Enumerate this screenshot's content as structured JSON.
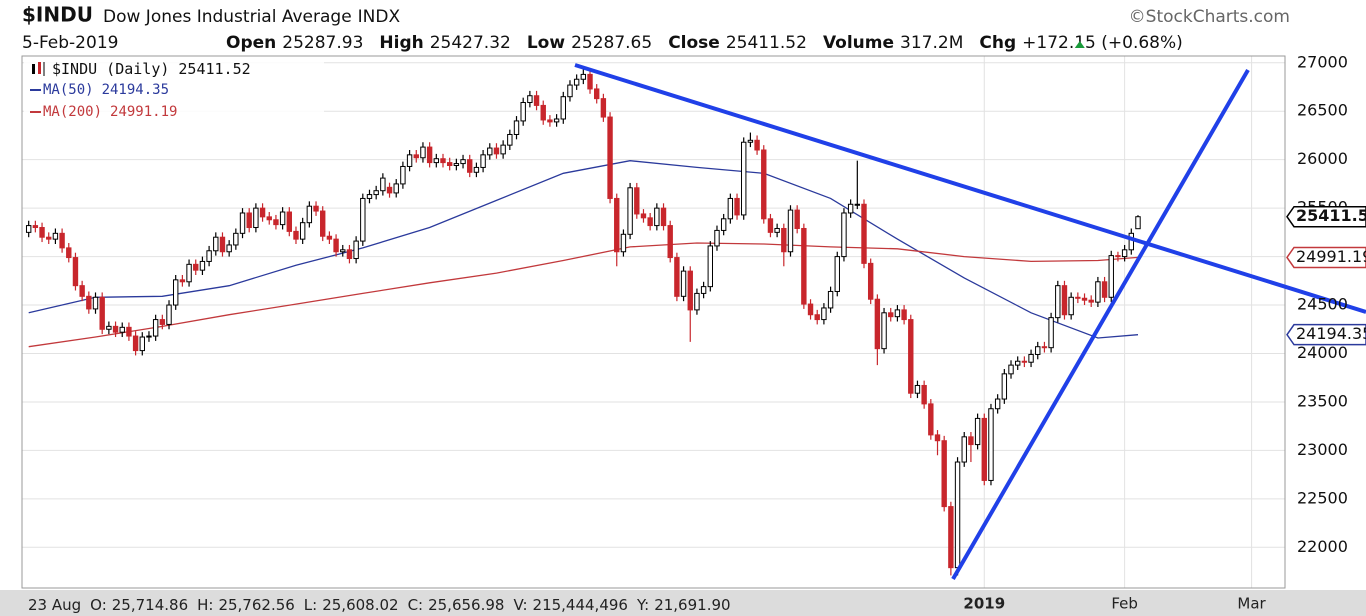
{
  "header": {
    "symbol": "$INDU",
    "name": "Dow Jones Industrial Average",
    "exchange": "INDX",
    "source": "©StockCharts.com",
    "date": "5-Feb-2019",
    "stats": [
      {
        "label": "Open",
        "path": "open"
      },
      {
        "label": "High",
        "path": "high"
      },
      {
        "label": "Low",
        "path": "low"
      },
      {
        "label": "Close",
        "path": "close"
      }
    ],
    "volume_label": "Volume",
    "volume": "317.2M",
    "chg_label": "Chg",
    "chg": "+172.15 (+0.68%)"
  },
  "info_bar": {
    "date": "23 Aug",
    "items": [
      {
        "label": "O:",
        "value": "25,714.86"
      },
      {
        "label": "H:",
        "value": "25,762.56"
      },
      {
        "label": "L:",
        "value": "25,608.02"
      },
      {
        "label": "C:",
        "value": "25,656.98"
      },
      {
        "label": "V:",
        "value": "215,444,496"
      },
      {
        "label": "Y:",
        "value": "21,691.90"
      }
    ]
  },
  "chart_data": {
    "type": "candlestick",
    "name": "$INDU (Daily)",
    "up_color": "#000000",
    "down_color": "#c8262c",
    "ylim": [
      21580,
      27070
    ],
    "yticks": [
      22000,
      22500,
      23000,
      23500,
      24000,
      24500,
      25000,
      25500,
      26000,
      26500,
      27000
    ],
    "xlim": [
      -1,
      188
    ],
    "xticks": [
      {
        "value": 143,
        "label": "2019"
      },
      {
        "value": 164,
        "label": "Feb"
      },
      {
        "value": 183,
        "label": "Mar"
      }
    ],
    "grid": true,
    "open": [
      25250,
      25320,
      25300,
      25200,
      25180,
      25240,
      25090,
      24990,
      24700,
      24590,
      24460,
      24580,
      24250,
      24280,
      24220,
      24270,
      24180,
      24030,
      24170,
      24180,
      24350,
      24300,
      24500,
      24760,
      24740,
      24920,
      24860,
      24950,
      25060,
      25200,
      25050,
      25120,
      25240,
      25450,
      25300,
      25500,
      25410,
      25380,
      25330,
      25460,
      25260,
      25180,
      25350,
      25520,
      25470,
      25210,
      25180,
      25050,
      25070,
      24980,
      25160,
      25600,
      25640,
      25680,
      25714.86,
      25656.98,
      25750,
      25930,
      26050,
      26020,
      26130,
      25970,
      26010,
      25970,
      25940,
      25960,
      26000,
      25870,
      25920,
      26050,
      26120,
      26060,
      26150,
      26260,
      26400,
      26590,
      26660,
      26560,
      26410,
      26390,
      26420,
      26650,
      26770,
      26830,
      26880,
      26730,
      26630,
      26440,
      25600,
      25050,
      25230,
      25710,
      25440,
      25400,
      25320,
      25500,
      25320,
      24990,
      24590,
      24850,
      24450,
      24620,
      24690,
      25110,
      25270,
      25390,
      25600,
      25430,
      26180,
      26200,
      26100,
      25390,
      25250,
      25290,
      25050,
      25480,
      25290,
      24510,
      24400,
      24350,
      24470,
      24640,
      25000,
      25450,
      25540,
      25540,
      24930,
      24560,
      24050,
      24420,
      24380,
      24450,
      24350,
      23590,
      23670,
      23480,
      23160,
      23100,
      22420,
      21790,
      22880,
      23140,
      23060,
      23330,
      22690,
      23430,
      23530,
      23790,
      23880,
      23920,
      23910,
      23990,
      24070,
      24060,
      24370,
      24700,
      24400,
      24580,
      24570,
      24550,
      24530,
      24740,
      24580,
      25010,
      25000,
      25070,
      25287.93
    ],
    "high": [
      25370,
      25370,
      25350,
      25250,
      25290,
      25290,
      25140,
      25040,
      24750,
      24640,
      24630,
      24630,
      24330,
      24330,
      24320,
      24320,
      24230,
      24220,
      24230,
      24400,
      24400,
      24550,
      24810,
      24810,
      24970,
      24970,
      25000,
      25110,
      25250,
      25250,
      25170,
      25290,
      25500,
      25500,
      25550,
      25550,
      25460,
      25430,
      25510,
      25510,
      25310,
      25400,
      25570,
      25570,
      25520,
      25260,
      25230,
      25120,
      25120,
      25210,
      25650,
      25690,
      25730,
      25860,
      25762.56,
      25800,
      25980,
      26100,
      26100,
      26180,
      26180,
      26060,
      26060,
      26020,
      26010,
      26050,
      26050,
      25970,
      26100,
      26170,
      26170,
      26200,
      26310,
      26450,
      26640,
      26710,
      26710,
      26610,
      26460,
      26470,
      26700,
      26820,
      26880,
      26950,
      26930,
      26780,
      26680,
      26490,
      25650,
      25280,
      25760,
      25760,
      25490,
      25450,
      25550,
      25550,
      25370,
      25040,
      24900,
      24900,
      24670,
      24740,
      25160,
      25320,
      25440,
      25650,
      25650,
      26230,
      26280,
      26250,
      26150,
      25440,
      25340,
      25340,
      25530,
      25530,
      25340,
      24560,
      24450,
      24520,
      24690,
      25050,
      25500,
      25590,
      25990,
      25590,
      24980,
      24610,
      24470,
      24470,
      24500,
      24500,
      24400,
      23720,
      23720,
      23530,
      23210,
      23150,
      22470,
      22930,
      23190,
      23190,
      23380,
      23380,
      23480,
      23580,
      23840,
      23930,
      23970,
      23970,
      24040,
      24120,
      24120,
      24420,
      24750,
      24750,
      24630,
      24630,
      24620,
      24600,
      24790,
      24790,
      25060,
      25050,
      25120,
      25290,
      25427.32
    ],
    "low": [
      25200,
      25250,
      25150,
      25130,
      25130,
      25040,
      24940,
      24650,
      24540,
      24410,
      24410,
      24200,
      24200,
      24170,
      24170,
      24130,
      23980,
      23980,
      24120,
      24130,
      24250,
      24250,
      24450,
      24690,
      24690,
      24810,
      24810,
      24900,
      25010,
      25000,
      25000,
      25070,
      25190,
      25250,
      25250,
      25360,
      25330,
      25280,
      25280,
      25210,
      25130,
      25130,
      25300,
      25420,
      25160,
      25130,
      25000,
      25000,
      24930,
      24930,
      25110,
      25550,
      25590,
      25630,
      25608.02,
      25610,
      25700,
      25880,
      25970,
      25970,
      25920,
      25920,
      25920,
      25890,
      25890,
      25910,
      25820,
      25820,
      25870,
      26000,
      26010,
      26010,
      26100,
      26210,
      26350,
      26540,
      26510,
      26360,
      26340,
      26340,
      26370,
      26600,
      26720,
      26780,
      26680,
      26580,
      26390,
      25550,
      24900,
      25000,
      25180,
      25390,
      25350,
      25270,
      25270,
      25270,
      24940,
      24540,
      24540,
      24120,
      24400,
      24570,
      24640,
      25060,
      25220,
      25340,
      25380,
      25380,
      26130,
      26050,
      25340,
      25200,
      25200,
      24900,
      25000,
      25240,
      24460,
      24350,
      24300,
      24300,
      24420,
      24590,
      24950,
      25400,
      25490,
      24880,
      24510,
      23880,
      24000,
      24330,
      24330,
      24300,
      23540,
      23540,
      23430,
      23110,
      22950,
      22370,
      21710,
      21710,
      22830,
      22880,
      23010,
      22640,
      22640,
      23380,
      23480,
      23740,
      23830,
      23860,
      23860,
      23940,
      24010,
      24010,
      24320,
      24350,
      24350,
      24520,
      24500,
      24480,
      24480,
      24530,
      24530,
      24950,
      24950,
      25020,
      25287.65
    ],
    "close": [
      25320,
      25300,
      25200,
      25180,
      25240,
      25090,
      24990,
      24700,
      24590,
      24460,
      24580,
      24250,
      24280,
      24220,
      24270,
      24180,
      24030,
      24170,
      24180,
      24350,
      24300,
      24500,
      24760,
      24740,
      24920,
      24860,
      24950,
      25060,
      25200,
      25050,
      25120,
      25240,
      25450,
      25300,
      25500,
      25410,
      25380,
      25330,
      25460,
      25260,
      25180,
      25350,
      25520,
      25470,
      25210,
      25180,
      25050,
      25070,
      24980,
      25160,
      25600,
      25640,
      25680,
      25810,
      25656.98,
      25750,
      25930,
      26050,
      26020,
      26130,
      25970,
      26010,
      25970,
      25940,
      25960,
      26000,
      25870,
      25920,
      26050,
      26120,
      26060,
      26150,
      26260,
      26400,
      26590,
      26660,
      26560,
      26410,
      26390,
      26420,
      26650,
      26770,
      26830,
      26880,
      26730,
      26630,
      26440,
      25600,
      25050,
      25230,
      25710,
      25440,
      25400,
      25320,
      25500,
      25320,
      24990,
      24590,
      24850,
      24450,
      24620,
      24690,
      25110,
      25270,
      25390,
      25600,
      25430,
      26180,
      26200,
      26100,
      25390,
      25250,
      25290,
      25050,
      25480,
      25290,
      24510,
      24400,
      24350,
      24470,
      24640,
      25000,
      25450,
      25540,
      25540,
      24930,
      24560,
      24050,
      24420,
      24380,
      24450,
      24350,
      23590,
      23670,
      23480,
      23160,
      23100,
      22420,
      21790,
      22880,
      23140,
      23060,
      23330,
      22690,
      23430,
      23530,
      23790,
      23880,
      23920,
      23910,
      23990,
      24070,
      24060,
      24370,
      24700,
      24400,
      24580,
      24570,
      24550,
      24530,
      24740,
      24580,
      25010,
      25000,
      25070,
      25240,
      25411.52
    ],
    "series": [
      {
        "name": "MA(50)",
        "color": "#2b3a9c",
        "x": [
          0,
          10,
          20,
          30,
          40,
          50,
          60,
          70,
          80,
          90,
          100,
          110,
          120,
          130,
          140,
          150,
          160,
          166
        ],
        "values": [
          24420,
          24580,
          24590,
          24700,
          24910,
          25090,
          25300,
          25580,
          25860,
          25990,
          25920,
          25860,
          25600,
          25180,
          24780,
          24420,
          24160,
          24194.35
        ]
      },
      {
        "name": "MA(200)",
        "color": "#c2393c",
        "x": [
          0,
          10,
          20,
          30,
          40,
          50,
          60,
          70,
          80,
          90,
          100,
          110,
          120,
          130,
          140,
          150,
          160,
          166
        ],
        "values": [
          24070,
          24170,
          24280,
          24400,
          24510,
          24620,
          24730,
          24830,
          24960,
          25100,
          25140,
          25130,
          25100,
          25080,
          25000,
          24950,
          24960,
          24991.19
        ]
      }
    ]
  }
}
